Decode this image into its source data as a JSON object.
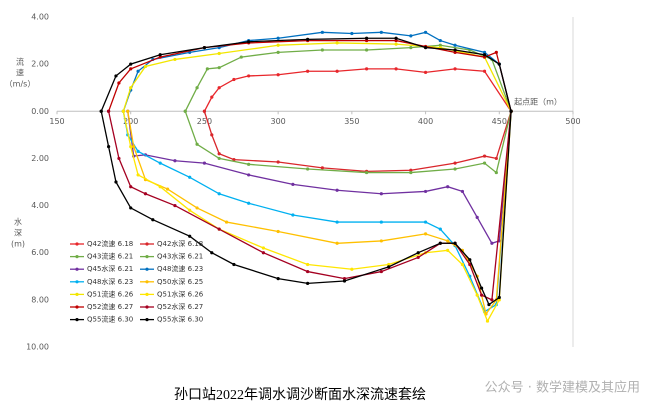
{
  "chart_data": {
    "type": "line",
    "title": "孙口站2022年调水调沙断面水深流速套绘",
    "watermark": "公众号 · 数学建模及其应用",
    "y_label_top": [
      "流",
      "速",
      "（m/s）"
    ],
    "y_label_bottom": [
      "水",
      "深",
      "(m)"
    ],
    "x_label": "起点距（m）",
    "xlim": [
      150,
      500
    ],
    "xticks": [
      150,
      200,
      250,
      300,
      350,
      400,
      450,
      500
    ],
    "ylim": [
      -10,
      4
    ],
    "yticks": [
      {
        "value": 4,
        "label": "4.00"
      },
      {
        "value": 2,
        "label": "2.00"
      },
      {
        "value": 0,
        "label": "0.00"
      },
      {
        "value": -2,
        "label": "2.00"
      },
      {
        "value": -4,
        "label": "4.00"
      },
      {
        "value": -6,
        "label": "6.00"
      },
      {
        "value": -8,
        "label": "8.00"
      },
      {
        "value": -10,
        "label": "10.00"
      }
    ],
    "legend": "lower left",
    "series": [
      {
        "name": "Q42流速 6.18",
        "color": "#e8262b",
        "x": [
          250,
          255,
          260,
          270,
          280,
          300,
          320,
          340,
          360,
          380,
          400,
          420,
          440,
          458
        ],
        "values": [
          0,
          0.6,
          1.0,
          1.35,
          1.5,
          1.55,
          1.7,
          1.7,
          1.8,
          1.8,
          1.65,
          1.8,
          1.7,
          0
        ]
      },
      {
        "name": "Q42水深 6.18",
        "color": "#d9262b",
        "x": [
          250,
          255,
          260,
          270,
          300,
          330,
          360,
          390,
          420,
          440,
          448,
          458
        ],
        "values": [
          0,
          -1.0,
          -1.8,
          -2.05,
          -2.15,
          -2.4,
          -2.55,
          -2.5,
          -2.2,
          -1.9,
          -2.0,
          0
        ]
      },
      {
        "name": "Q43流速 6.21",
        "color": "#70ad47",
        "x": [
          237,
          245,
          252,
          260,
          275,
          300,
          330,
          360,
          390,
          410,
          430,
          445,
          458
        ],
        "values": [
          0,
          1.0,
          1.8,
          1.85,
          2.3,
          2.5,
          2.6,
          2.6,
          2.7,
          2.8,
          2.6,
          2.2,
          0
        ]
      },
      {
        "name": "Q43水深 6.21",
        "color": "#70ad47",
        "x": [
          237,
          245,
          260,
          280,
          320,
          360,
          390,
          420,
          440,
          448,
          458
        ],
        "values": [
          0,
          -1.4,
          -2.0,
          -2.25,
          -2.45,
          -2.6,
          -2.6,
          -2.45,
          -2.2,
          -2.6,
          0
        ]
      },
      {
        "name": "Q45水深 6.21",
        "color": "#7030a0",
        "x": [
          198,
          202,
          210,
          230,
          250,
          280,
          310,
          340,
          370,
          400,
          415,
          425,
          435,
          445,
          450,
          458
        ],
        "values": [
          0,
          -1.9,
          -1.85,
          -2.1,
          -2.2,
          -2.7,
          -3.1,
          -3.35,
          -3.5,
          -3.4,
          -3.2,
          -3.4,
          -4.5,
          -5.6,
          -5.5,
          0
        ]
      },
      {
        "name": "Q48流速 6.23",
        "color": "#0070c0",
        "x": [
          195,
          200,
          205,
          215,
          240,
          260,
          280,
          300,
          330,
          350,
          370,
          390,
          400,
          410,
          420,
          440,
          450,
          458
        ],
        "values": [
          0,
          0.9,
          1.7,
          2.2,
          2.5,
          2.7,
          3.0,
          3.1,
          3.35,
          3.3,
          3.35,
          3.2,
          3.35,
          3.0,
          2.8,
          2.5,
          2.0,
          0
        ]
      },
      {
        "name": "Q48水深 6.23",
        "color": "#00b0f0",
        "x": [
          195,
          198,
          205,
          220,
          240,
          260,
          280,
          310,
          340,
          370,
          400,
          410,
          420,
          430,
          440,
          448,
          458
        ],
        "values": [
          0,
          -1.0,
          -1.7,
          -2.2,
          -2.8,
          -3.5,
          -3.9,
          -4.4,
          -4.7,
          -4.7,
          -4.7,
          -5.0,
          -5.7,
          -7.0,
          -8.5,
          -8.2,
          0
        ]
      },
      {
        "name": "Q50水深 6.25",
        "color": "#ffc000",
        "x": [
          198,
          202,
          210,
          225,
          245,
          265,
          300,
          340,
          370,
          400,
          415,
          425,
          435,
          441,
          448,
          458
        ],
        "values": [
          0,
          -1.5,
          -2.9,
          -3.3,
          -4.1,
          -4.7,
          -5.1,
          -5.6,
          -5.5,
          -5.2,
          -5.5,
          -5.9,
          -7.0,
          -8.6,
          -8.0,
          0
        ]
      },
      {
        "name": "Q51流速 6.26",
        "color": "#f2e600",
        "x": [
          195,
          200,
          210,
          230,
          260,
          300,
          340,
          380,
          410,
          440,
          458
        ],
        "values": [
          0,
          1.0,
          1.9,
          2.2,
          2.45,
          2.8,
          2.9,
          2.85,
          2.7,
          2.3,
          0
        ]
      },
      {
        "name": "Q51水深 6.26",
        "color": "#ffe600",
        "x": [
          195,
          200,
          205,
          220,
          240,
          260,
          290,
          320,
          350,
          375,
          400,
          415,
          425,
          435,
          442,
          450,
          458
        ],
        "values": [
          0,
          -1.5,
          -2.7,
          -3.2,
          -4.2,
          -5.0,
          -5.8,
          -6.5,
          -6.7,
          -6.5,
          -6.0,
          -5.9,
          -6.5,
          -7.8,
          -8.9,
          -8.0,
          0
        ]
      },
      {
        "name": "Q52流速 6.27",
        "color": "#c00000",
        "x": [
          185,
          192,
          200,
          220,
          250,
          280,
          320,
          360,
          380,
          400,
          420,
          440,
          448,
          458
        ],
        "values": [
          0,
          1.2,
          1.8,
          2.3,
          2.7,
          2.9,
          3.0,
          3.0,
          3.0,
          2.75,
          2.5,
          2.3,
          2.5,
          0
        ]
      },
      {
        "name": "Q52水深 6.27",
        "color": "#a50021",
        "x": [
          185,
          192,
          200,
          210,
          230,
          260,
          290,
          320,
          345,
          370,
          395,
          410,
          420,
          430,
          438,
          445,
          458
        ],
        "values": [
          0,
          -2.0,
          -3.2,
          -3.5,
          -4.0,
          -5.0,
          -6.0,
          -6.8,
          -7.1,
          -6.8,
          -6.2,
          -5.6,
          -5.6,
          -6.5,
          -7.8,
          -8.0,
          0
        ]
      },
      {
        "name": "Q55流速 6.30",
        "color": "#000000",
        "x": [
          180,
          190,
          200,
          220,
          250,
          280,
          320,
          360,
          380,
          400,
          420,
          440,
          450,
          458
        ],
        "values": [
          0,
          1.5,
          2.0,
          2.4,
          2.7,
          2.95,
          3.05,
          3.1,
          3.1,
          2.7,
          2.6,
          2.4,
          2.0,
          0
        ]
      },
      {
        "name": "Q55水深 6.30",
        "color": "#000000",
        "x": [
          180,
          185,
          190,
          200,
          215,
          240,
          255,
          270,
          300,
          320,
          345,
          375,
          395,
          410,
          420,
          430,
          438,
          443,
          450,
          458
        ],
        "values": [
          0,
          -1.5,
          -3.0,
          -4.1,
          -4.6,
          -5.3,
          -6.0,
          -6.5,
          -7.1,
          -7.3,
          -7.2,
          -6.6,
          -6.0,
          -5.6,
          -5.6,
          -6.3,
          -7.5,
          -8.2,
          -7.9,
          0
        ]
      }
    ]
  }
}
